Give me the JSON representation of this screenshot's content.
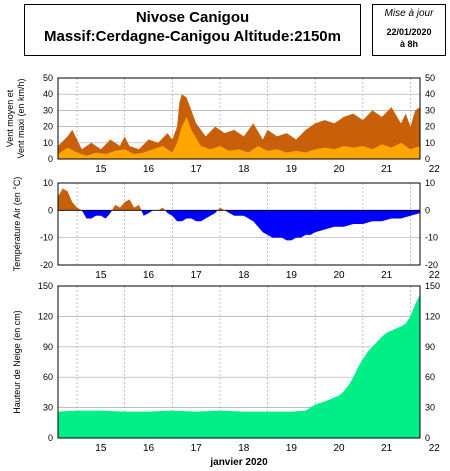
{
  "header": {
    "title": "Nivose Canigou",
    "subtitle": "Massif:Cerdagne-Canigou Altitude:2150m",
    "update_label": "Mise à jour",
    "update_date": "22/01/2020",
    "update_time": "à 8h"
  },
  "colors": {
    "wind_max": "#c8600a",
    "wind_mean": "#ffa500",
    "temp_pos": "#c8600a",
    "temp_neg": "#0000ff",
    "snow": "#00ee88",
    "grid": "#aaaaaa"
  },
  "chart_data": [
    {
      "type": "area",
      "id": "wind",
      "ylabel": "Vent moyen et Vent maxi (en km/h)",
      "ylim": [
        0,
        50
      ],
      "yticks": [
        0,
        10,
        20,
        30,
        40,
        50
      ],
      "xlim": [
        14.6,
        22.2
      ],
      "xticks": [
        "15",
        "16",
        "17",
        "18",
        "19",
        "20",
        "21",
        "22"
      ],
      "grid": true,
      "series": [
        {
          "role": "max",
          "x": [
            14.6,
            14.8,
            14.9,
            15.0,
            15.1,
            15.3,
            15.5,
            15.7,
            15.9,
            16.0,
            16.1,
            16.3,
            16.5,
            16.7,
            16.9,
            17.0,
            17.1,
            17.15,
            17.2,
            17.3,
            17.4,
            17.5,
            17.7,
            17.9,
            18.1,
            18.3,
            18.5,
            18.7,
            18.9,
            19.0,
            19.2,
            19.4,
            19.6,
            19.8,
            20.0,
            20.2,
            20.4,
            20.6,
            20.8,
            21.0,
            21.2,
            21.4,
            21.6,
            21.8,
            21.9,
            22.0,
            22.1,
            22.2
          ],
          "values": [
            8,
            14,
            18,
            12,
            6,
            10,
            6,
            12,
            8,
            14,
            8,
            6,
            12,
            10,
            16,
            12,
            20,
            35,
            40,
            38,
            30,
            22,
            14,
            20,
            16,
            18,
            14,
            22,
            12,
            18,
            14,
            16,
            12,
            18,
            22,
            24,
            22,
            26,
            28,
            24,
            30,
            26,
            32,
            22,
            28,
            20,
            30,
            32
          ]
        },
        {
          "role": "mean",
          "x": [
            14.6,
            14.8,
            15.0,
            15.2,
            15.4,
            15.6,
            15.8,
            16.0,
            16.2,
            16.4,
            16.6,
            16.8,
            17.0,
            17.1,
            17.2,
            17.3,
            17.4,
            17.6,
            17.8,
            18.0,
            18.2,
            18.4,
            18.6,
            18.8,
            19.0,
            19.2,
            19.4,
            19.6,
            19.8,
            20.0,
            20.2,
            20.4,
            20.6,
            20.8,
            21.0,
            21.2,
            21.4,
            21.6,
            21.8,
            22.0,
            22.2
          ],
          "values": [
            3,
            7,
            4,
            2,
            4,
            3,
            5,
            6,
            3,
            4,
            6,
            8,
            4,
            10,
            20,
            26,
            18,
            8,
            6,
            8,
            5,
            6,
            4,
            8,
            5,
            6,
            4,
            5,
            4,
            6,
            7,
            6,
            8,
            7,
            8,
            6,
            9,
            7,
            10,
            6,
            8
          ]
        }
      ]
    },
    {
      "type": "area",
      "id": "temperature",
      "ylabel": "Température Air (en °C)",
      "ylim": [
        -20,
        10
      ],
      "yticks": [
        -20,
        -10,
        0,
        10
      ],
      "xlim": [
        14.6,
        22.2
      ],
      "xticks": [
        "15",
        "16",
        "17",
        "18",
        "19",
        "20",
        "21",
        "22"
      ],
      "grid": true,
      "x": [
        14.6,
        14.7,
        14.8,
        14.9,
        15.0,
        15.1,
        15.2,
        15.3,
        15.4,
        15.5,
        15.6,
        15.7,
        15.8,
        15.9,
        16.0,
        16.1,
        16.2,
        16.3,
        16.4,
        16.5,
        16.6,
        16.7,
        16.8,
        16.9,
        17.0,
        17.1,
        17.2,
        17.3,
        17.4,
        17.5,
        17.6,
        17.7,
        17.8,
        17.9,
        18.0,
        18.1,
        18.2,
        18.3,
        18.4,
        18.5,
        18.6,
        18.7,
        18.8,
        18.9,
        19.0,
        19.1,
        19.2,
        19.3,
        19.4,
        19.5,
        19.6,
        19.7,
        19.8,
        19.9,
        20.0,
        20.2,
        20.4,
        20.6,
        20.8,
        21.0,
        21.2,
        21.4,
        21.6,
        21.8,
        22.0,
        22.2
      ],
      "values": [
        5,
        8,
        7,
        3,
        1,
        0,
        -3,
        -3,
        -2,
        -2,
        -3,
        -1,
        2,
        1,
        3,
        4,
        1,
        2,
        -2,
        -1,
        0,
        0,
        1,
        -1,
        -2,
        -4,
        -4,
        -3,
        -3,
        -4,
        -4,
        -3,
        -2,
        -1,
        1,
        0,
        -1,
        -2,
        -2,
        -2,
        -3,
        -4,
        -6,
        -8,
        -9,
        -10,
        -10,
        -10,
        -11,
        -11,
        -10,
        -10,
        -9,
        -9,
        -8,
        -7,
        -6,
        -6,
        -5,
        -5,
        -4,
        -4,
        -3,
        -3,
        -2,
        -1
      ]
    },
    {
      "type": "area",
      "id": "snow",
      "ylabel": "Hauteur de Neige (en cm)",
      "xlabel": "janvier 2020",
      "ylim": [
        0,
        150
      ],
      "yticks": [
        0,
        30,
        60,
        90,
        120,
        150
      ],
      "xlim": [
        14.6,
        22.2
      ],
      "xticks": [
        "15",
        "16",
        "17",
        "18",
        "19",
        "20",
        "21",
        "22"
      ],
      "grid": true,
      "x": [
        14.6,
        15.0,
        15.5,
        16.0,
        16.5,
        17.0,
        17.5,
        18.0,
        18.5,
        19.0,
        19.5,
        19.8,
        19.9,
        20.0,
        20.2,
        20.4,
        20.5,
        20.6,
        20.7,
        20.8,
        20.9,
        21.0,
        21.1,
        21.2,
        21.3,
        21.4,
        21.5,
        21.6,
        21.7,
        21.8,
        21.9,
        22.0,
        22.1,
        22.2
      ],
      "values": [
        26,
        27,
        27,
        26,
        26,
        27,
        26,
        27,
        26,
        26,
        26,
        27,
        30,
        33,
        36,
        40,
        42,
        46,
        52,
        60,
        70,
        78,
        85,
        90,
        95,
        100,
        104,
        106,
        108,
        110,
        113,
        120,
        132,
        142
      ]
    }
  ]
}
